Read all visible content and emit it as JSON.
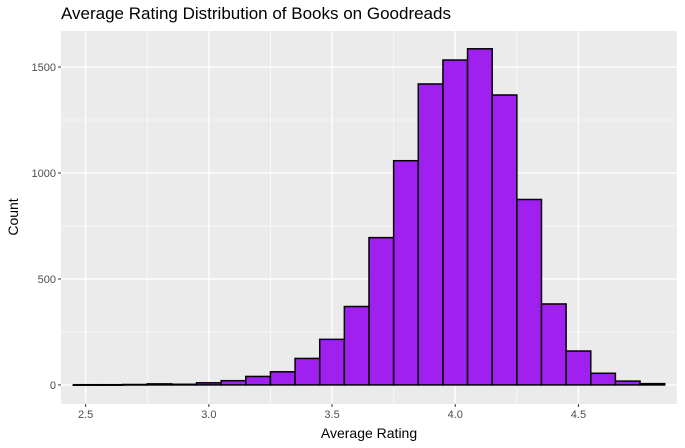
{
  "chart_data": {
    "type": "bar",
    "title": "Average Rating Distribution of Books on Goodreads",
    "xlabel": "Average Rating",
    "ylabel": "Count",
    "x_ticks": [
      "2.5",
      "3.0",
      "3.5",
      "4.0",
      "4.5"
    ],
    "y_ticks": [
      "0",
      "500",
      "1000",
      "1500"
    ],
    "xlim": [
      2.4,
      4.9
    ],
    "ylim": [
      -90,
      1670
    ],
    "grid": true,
    "bin_width": 0.1,
    "bins": [
      {
        "x0": 2.45,
        "x1": 2.55,
        "count": 1
      },
      {
        "x0": 2.55,
        "x1": 2.65,
        "count": 1
      },
      {
        "x0": 2.65,
        "x1": 2.75,
        "count": 2
      },
      {
        "x0": 2.75,
        "x1": 2.85,
        "count": 5
      },
      {
        "x0": 2.85,
        "x1": 2.95,
        "count": 3
      },
      {
        "x0": 2.95,
        "x1": 3.05,
        "count": 10
      },
      {
        "x0": 3.05,
        "x1": 3.15,
        "count": 20
      },
      {
        "x0": 3.15,
        "x1": 3.25,
        "count": 40
      },
      {
        "x0": 3.25,
        "x1": 3.35,
        "count": 62
      },
      {
        "x0": 3.35,
        "x1": 3.45,
        "count": 125
      },
      {
        "x0": 3.45,
        "x1": 3.55,
        "count": 215
      },
      {
        "x0": 3.55,
        "x1": 3.65,
        "count": 370
      },
      {
        "x0": 3.65,
        "x1": 3.75,
        "count": 695
      },
      {
        "x0": 3.75,
        "x1": 3.85,
        "count": 1058
      },
      {
        "x0": 3.85,
        "x1": 3.95,
        "count": 1420
      },
      {
        "x0": 3.95,
        "x1": 4.05,
        "count": 1533
      },
      {
        "x0": 4.05,
        "x1": 4.15,
        "count": 1586
      },
      {
        "x0": 4.15,
        "x1": 4.25,
        "count": 1368
      },
      {
        "x0": 4.25,
        "x1": 4.35,
        "count": 875
      },
      {
        "x0": 4.35,
        "x1": 4.45,
        "count": 382
      },
      {
        "x0": 4.45,
        "x1": 4.55,
        "count": 160
      },
      {
        "x0": 4.55,
        "x1": 4.65,
        "count": 55
      },
      {
        "x0": 4.65,
        "x1": 4.75,
        "count": 18
      },
      {
        "x0": 4.75,
        "x1": 4.85,
        "count": 6
      }
    ],
    "colors": {
      "fill": "#a020f0",
      "stroke": "#000000",
      "panel": "#ebebeb",
      "grid": "#ffffff"
    }
  }
}
